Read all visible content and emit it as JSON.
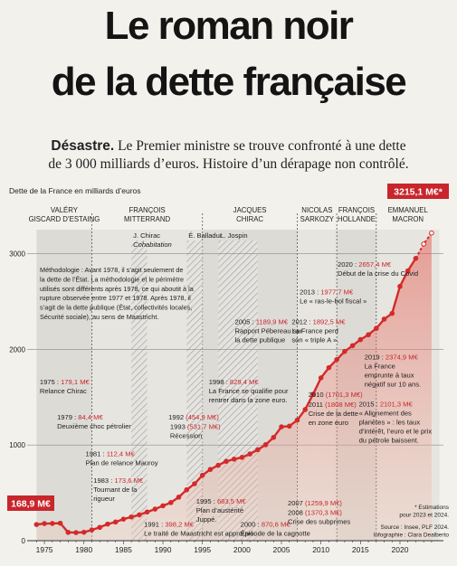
{
  "title_line1": "Le roman noir",
  "title_line2": "de la dette française",
  "subtitle_bold": "Désastre.",
  "subtitle_line1": "Le Premier ministre se trouve confronté à une dette",
  "subtitle_line2": "de 3 000 milliards d’euros. Histoire d’un dérapage non contrôlé.",
  "colors": {
    "line": "#d42a2a",
    "accent": "#c8262c",
    "band": "#d8d6d2",
    "hatch": "#a9a7a3",
    "background": "#f3f1ec"
  },
  "chart_data": {
    "type": "line",
    "ylabel": "Dette de la France en milliards d’euros",
    "xlim": [
      1973.5,
      2025.5
    ],
    "ylim": [
      0,
      3250
    ],
    "x_ticks": [
      1975,
      1980,
      1985,
      1990,
      1995,
      2000,
      2005,
      2010,
      2015,
      2020
    ],
    "y_ticks": [
      0,
      1000,
      2000,
      3000
    ],
    "series": [
      {
        "x": [
          1974,
          1975,
          1976,
          1977,
          1978,
          1979,
          1980,
          1981,
          1982,
          1983,
          1984,
          1985,
          1986,
          1987,
          1988,
          1989,
          1990,
          1991,
          1992,
          1993,
          1994,
          1995,
          1996,
          1997,
          1998,
          1999,
          2000,
          2001,
          2002,
          2003,
          2004,
          2005,
          2006,
          2007,
          2008,
          2009,
          2010,
          2011,
          2012,
          2013,
          2014,
          2015,
          2016,
          2017,
          2018,
          2019,
          2020,
          2021,
          2022,
          2023,
          2024
        ],
        "y": [
          168.9,
          179.1,
          180,
          183,
          87,
          84.4,
          88,
          112.4,
          139,
          173.6,
          195,
          225,
          248,
          270,
          300,
          330,
          365,
          398.2,
          454.9,
          531.7,
          595,
          683.5,
          745,
          788,
          829.4,
          852,
          870.6,
          906,
          950,
          1003,
          1079,
          1189.9,
          1197,
          1259.9,
          1370.3,
          1530,
          1701.3,
          1808,
          1892.5,
          1977.7,
          2038,
          2101.3,
          2152,
          2218,
          2315,
          2374.9,
          2657.4,
          2820,
          2950,
          3100,
          3215.1
        ]
      }
    ],
    "estimated_from_x": 2023,
    "legend_start_value": "168,9 M€",
    "legend_end_value": "3215,1 M€*",
    "presidents": [
      {
        "name1": "VALÉRY",
        "name2": "GISCARD D’ESTAING",
        "start": 1974,
        "end": 1981
      },
      {
        "name1": "FRANÇOIS",
        "name2": "MITTERRAND",
        "start": 1981,
        "end": 1995
      },
      {
        "name1": "JACQUES",
        "name2": "CHIRAC",
        "start": 1995,
        "end": 2007
      },
      {
        "name1": "NICOLAS",
        "name2": "SARKOZY",
        "start": 2007,
        "end": 2012
      },
      {
        "name1": "FRANÇOIS",
        "name2": "HOLLANDE",
        "start": 2012,
        "end": 2017
      },
      {
        "name1": "EMMANUEL",
        "name2": "MACRON",
        "start": 2017,
        "end": 2025
      }
    ],
    "cohabitations": [
      {
        "label": "J. Chirac",
        "label2": "Cohabitation",
        "start": 1986,
        "end": 1988
      },
      {
        "label": "É. Balladur",
        "label2": "",
        "start": 1993,
        "end": 1995
      },
      {
        "label": "L. Jospin",
        "label2": "",
        "start": 1997,
        "end": 2002
      }
    ],
    "methodology": [
      "Méthodologie : Avant 1978, il s’agit seulement de",
      "la dette de l’État. La méthodologie et le périmètre",
      "utilisés sont différents après 1978, ce qui aboutit à la",
      "rupture observée entre 1977 et 1978. Après 1978, il",
      "s’agit de la dette publique (État, collectivités locales,",
      "Sécurité sociale), au sens de Maastricht."
    ],
    "annotations": [
      {
        "year": "1975 :",
        "value": "179,1 M€",
        "text": [
          "Relance Chirac"
        ],
        "tx": 1974.4,
        "ty": 1635
      },
      {
        "year": "1979 :",
        "value": "84,4 M€",
        "text": [
          "Deuxième choc pétrolier"
        ],
        "tx": 1976.6,
        "ty": 1265
      },
      {
        "year": "1981 :",
        "value": "112,4 M€",
        "text": [
          "Plan de relance Mauroy"
        ],
        "tx": 1980.2,
        "ty": 885
      },
      {
        "year": "1983 :",
        "value": "173,6 M€",
        "text": [
          "Tournant de la",
          "rigueur"
        ],
        "tx": 1981.2,
        "ty": 605
      },
      {
        "year": "1991 :",
        "value": "398,2 M€",
        "text": [
          "Le traité de Maastricht est approuvé."
        ],
        "tx": 1987.6,
        "ty": 145
      },
      {
        "year": "1992",
        "value": "(454,9 M€)",
        "text": [],
        "tx": 1990.7,
        "ty": 1265
      },
      {
        "year": "1993",
        "value": "(531,7 M€)",
        "text": [
          "Récession"
        ],
        "tx": 1990.9,
        "ty": 1165
      },
      {
        "year": "1995 :",
        "value": "683,5 M€",
        "text": [
          "Plan d’austérité",
          "Juppé."
        ],
        "tx": 1994.2,
        "ty": 385
      },
      {
        "year": "1998 :",
        "value": "829,4 M€",
        "text": [
          "La France se qualifie pour",
          "rentrer dans la zone euro."
        ],
        "tx": 1995.8,
        "ty": 1635
      },
      {
        "year": "2000 :",
        "value": "870,6 M€",
        "text": [
          "Épisode de la cagnotte"
        ],
        "tx": 1999.8,
        "ty": 145
      },
      {
        "year": "2005 :",
        "value": "1189,9 M€",
        "text": [
          "Rapport Pébereau sur",
          "la dette publique"
        ],
        "tx": 1999.1,
        "ty": 2265
      },
      {
        "year": "2007",
        "value": "(1259,9 M€)",
        "text": [],
        "tx": 2005.8,
        "ty": 370
      },
      {
        "year": "2008",
        "value": "(1370,3 M€)",
        "text": [
          "Crise des subprimes"
        ],
        "tx": 2005.8,
        "ty": 270
      },
      {
        "year": "2010",
        "value": "(1701,3 M€)",
        "text": [],
        "tx": 2008.4,
        "ty": 1500
      },
      {
        "year": "2011",
        "value": "(1808 M€)",
        "text": [
          "Crise de la dette",
          "en zone euro"
        ],
        "tx": 2008.4,
        "ty": 1400
      },
      {
        "year": "2012 :",
        "value": "1892,5 M€",
        "text": [
          "La France perd",
          "son « triple A »."
        ],
        "tx": 2006.3,
        "ty": 2265
      },
      {
        "year": "2013 :",
        "value": "1977,7 M€",
        "text": [
          "Le « ras-le-bol fiscal »"
        ],
        "tx": 2007.3,
        "ty": 2575
      },
      {
        "year": "2015 :",
        "value": "2101,3 M€",
        "text": [
          "« Alignement des",
          "planètes » : les taux",
          "d’intérêt, l’euro et le prix",
          "du pétrole baissent."
        ],
        "tx": 2014.8,
        "ty": 1405
      },
      {
        "year": "2019 :",
        "value": "2374,9 M€",
        "text": [
          "La France",
          "emprunte à taux",
          "négatif sur 10 ans."
        ],
        "tx": 2015.5,
        "ty": 1895
      },
      {
        "year": "2020 :",
        "value": "2657,4 M€",
        "text": [
          "Début de la crise du Covid"
        ],
        "tx": 2012.1,
        "ty": 2865
      }
    ],
    "estimates_note": [
      "* Estimations",
      "pour 2023 et 2024."
    ],
    "source": [
      "Source : Insee, PLF 2024.",
      "Infographie : Clara Dealberto"
    ]
  }
}
